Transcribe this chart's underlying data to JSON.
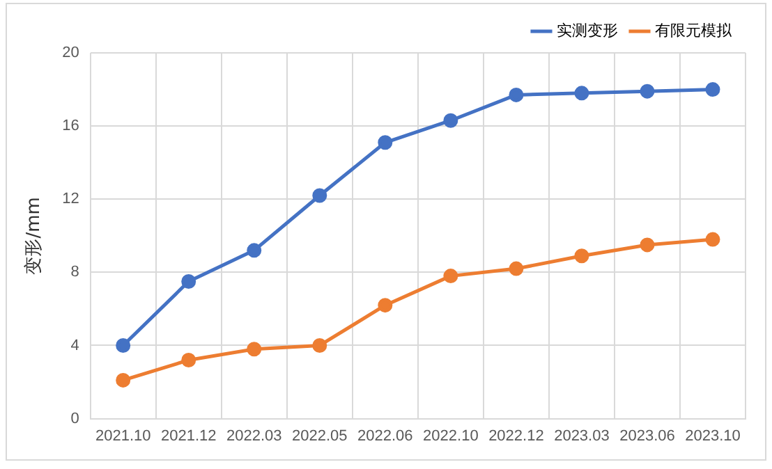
{
  "chart_data": {
    "type": "line",
    "ylabel": "变形/mm",
    "categories": [
      "2021.10",
      "2021.12",
      "2022.03",
      "2022.05",
      "2022.06",
      "2022.10",
      "2022.12",
      "2023.03",
      "2023.06",
      "2023.10"
    ],
    "series": [
      {
        "name": "实测变形",
        "color": "#4472c4",
        "values": [
          4.0,
          7.5,
          9.2,
          12.2,
          15.1,
          16.3,
          17.7,
          17.8,
          17.9,
          18.0
        ]
      },
      {
        "name": "有限元模拟",
        "color": "#ed7d31",
        "values": [
          2.1,
          3.2,
          3.8,
          4.0,
          6.2,
          7.8,
          8.2,
          8.9,
          9.5,
          9.8
        ]
      }
    ],
    "ylim": [
      0,
      20
    ],
    "yticks": [
      0,
      4,
      8,
      12,
      16,
      20
    ],
    "grid": true,
    "legend": "top right",
    "marker": "circle",
    "line_style": "solid"
  }
}
